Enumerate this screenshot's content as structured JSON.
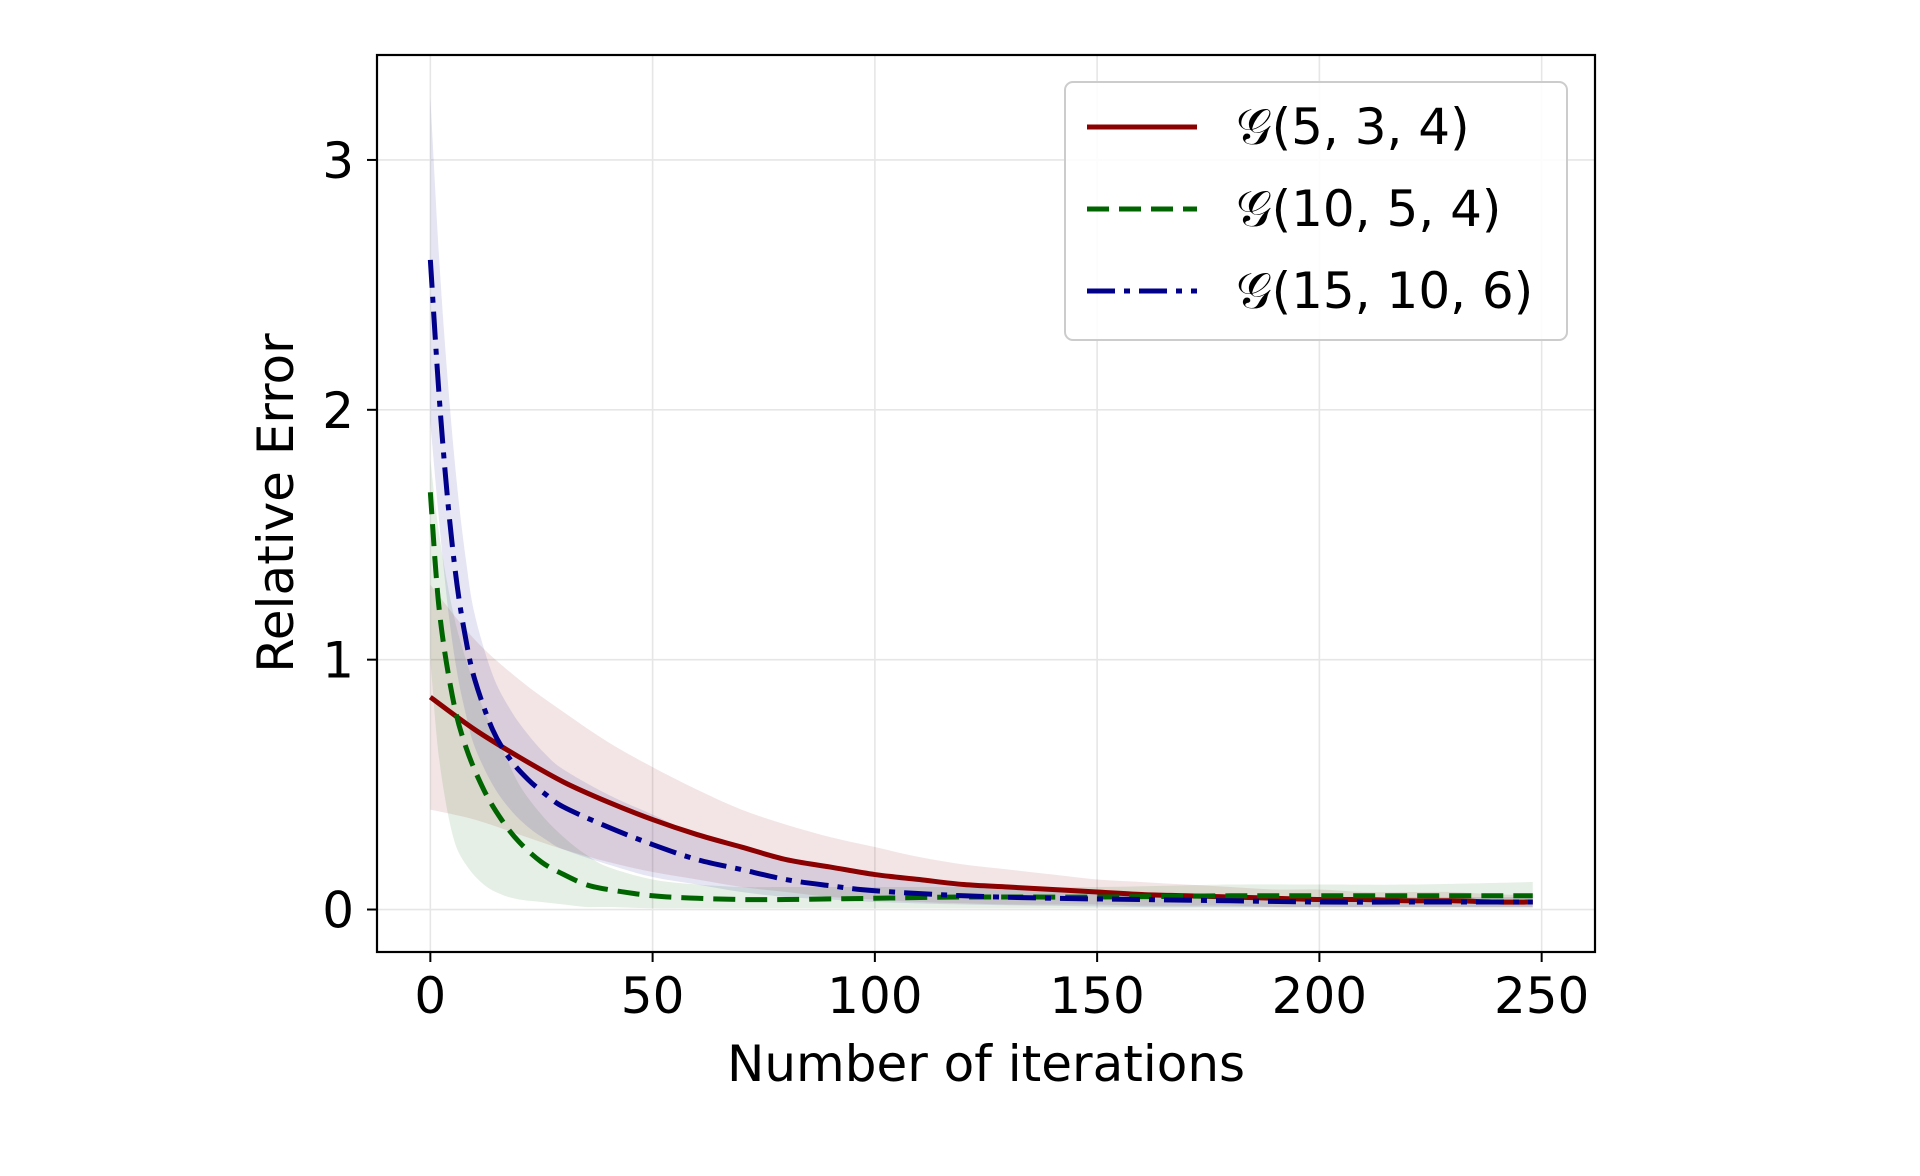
{
  "chart_data": {
    "type": "line",
    "title": "",
    "xlabel": "Number of iterations",
    "ylabel": "Relative Error",
    "xlim": [
      -12,
      262
    ],
    "ylim": [
      -0.17,
      3.42
    ],
    "xticks": [
      0,
      50,
      100,
      150,
      200,
      250
    ],
    "yticks": [
      0,
      1,
      2,
      3
    ],
    "grid": true,
    "legend_position": "upper right",
    "series": [
      {
        "name": "𝒢(5, 3, 4)",
        "color": "#8b0000",
        "linestyle": "solid",
        "x": [
          0,
          10,
          20,
          30,
          40,
          50,
          60,
          70,
          80,
          90,
          100,
          110,
          120,
          130,
          140,
          150,
          160,
          170,
          180,
          190,
          200,
          210,
          220,
          230,
          240,
          248
        ],
        "y": [
          0.85,
          0.72,
          0.61,
          0.51,
          0.43,
          0.36,
          0.3,
          0.25,
          0.2,
          0.17,
          0.14,
          0.12,
          0.1,
          0.09,
          0.08,
          0.07,
          0.06,
          0.055,
          0.05,
          0.045,
          0.04,
          0.04,
          0.035,
          0.035,
          0.03,
          0.03
        ],
        "band_lower": [
          0.4,
          0.36,
          0.3,
          0.24,
          0.19,
          0.15,
          0.12,
          0.09,
          0.07,
          0.05,
          0.04,
          0.03,
          0.025,
          0.02,
          0.02,
          0.02,
          0.015,
          0.015,
          0.015,
          0.01,
          0.01,
          0.01,
          0.01,
          0.01,
          0.01,
          0.01
        ],
        "band_upper": [
          1.3,
          1.08,
          0.92,
          0.79,
          0.67,
          0.57,
          0.48,
          0.4,
          0.34,
          0.29,
          0.25,
          0.21,
          0.18,
          0.16,
          0.14,
          0.12,
          0.11,
          0.1,
          0.09,
          0.08,
          0.08,
          0.07,
          0.07,
          0.07,
          0.06,
          0.06
        ]
      },
      {
        "name": "𝒢(10, 5, 4)",
        "color": "#006400",
        "linestyle": "dashed",
        "x": [
          0,
          2,
          5,
          8,
          12,
          16,
          20,
          25,
          30,
          35,
          40,
          50,
          60,
          70,
          80,
          100,
          120,
          150,
          180,
          200,
          220,
          248
        ],
        "y": [
          1.67,
          1.2,
          0.85,
          0.65,
          0.48,
          0.36,
          0.27,
          0.19,
          0.14,
          0.1,
          0.08,
          0.055,
          0.045,
          0.04,
          0.04,
          0.045,
          0.05,
          0.05,
          0.055,
          0.055,
          0.055,
          0.055
        ],
        "band_lower": [
          1.0,
          0.6,
          0.3,
          0.18,
          0.1,
          0.06,
          0.04,
          0.03,
          0.02,
          0.01,
          0.01,
          0.005,
          0.005,
          0.005,
          0.005,
          0.005,
          0.005,
          0.005,
          0.005,
          0.005,
          0.005,
          0.005
        ],
        "band_upper": [
          1.8,
          1.5,
          1.2,
          1.0,
          0.8,
          0.65,
          0.5,
          0.38,
          0.29,
          0.22,
          0.17,
          0.12,
          0.1,
          0.09,
          0.09,
          0.09,
          0.09,
          0.09,
          0.1,
          0.1,
          0.1,
          0.11
        ]
      },
      {
        "name": "𝒢(15, 10, 6)",
        "color": "#00008b",
        "linestyle": "dashdot",
        "x": [
          0,
          2,
          4,
          6,
          8,
          10,
          14,
          18,
          22,
          26,
          30,
          40,
          50,
          60,
          70,
          80,
          90,
          100,
          120,
          140,
          160,
          180,
          200,
          220,
          248
        ],
        "y": [
          2.6,
          2.05,
          1.62,
          1.3,
          1.08,
          0.92,
          0.72,
          0.6,
          0.52,
          0.46,
          0.41,
          0.33,
          0.26,
          0.2,
          0.16,
          0.12,
          0.095,
          0.075,
          0.055,
          0.045,
          0.04,
          0.035,
          0.03,
          0.03,
          0.03
        ],
        "band_lower": [
          1.95,
          1.55,
          1.2,
          0.95,
          0.78,
          0.65,
          0.5,
          0.4,
          0.33,
          0.28,
          0.24,
          0.18,
          0.13,
          0.1,
          0.07,
          0.05,
          0.04,
          0.03,
          0.02,
          0.015,
          0.01,
          0.01,
          0.01,
          0.01,
          0.01
        ],
        "band_upper": [
          3.25,
          2.6,
          2.1,
          1.7,
          1.4,
          1.18,
          0.94,
          0.8,
          0.7,
          0.62,
          0.56,
          0.46,
          0.38,
          0.3,
          0.25,
          0.2,
          0.16,
          0.13,
          0.1,
          0.08,
          0.07,
          0.06,
          0.05,
          0.05,
          0.05
        ]
      }
    ]
  }
}
